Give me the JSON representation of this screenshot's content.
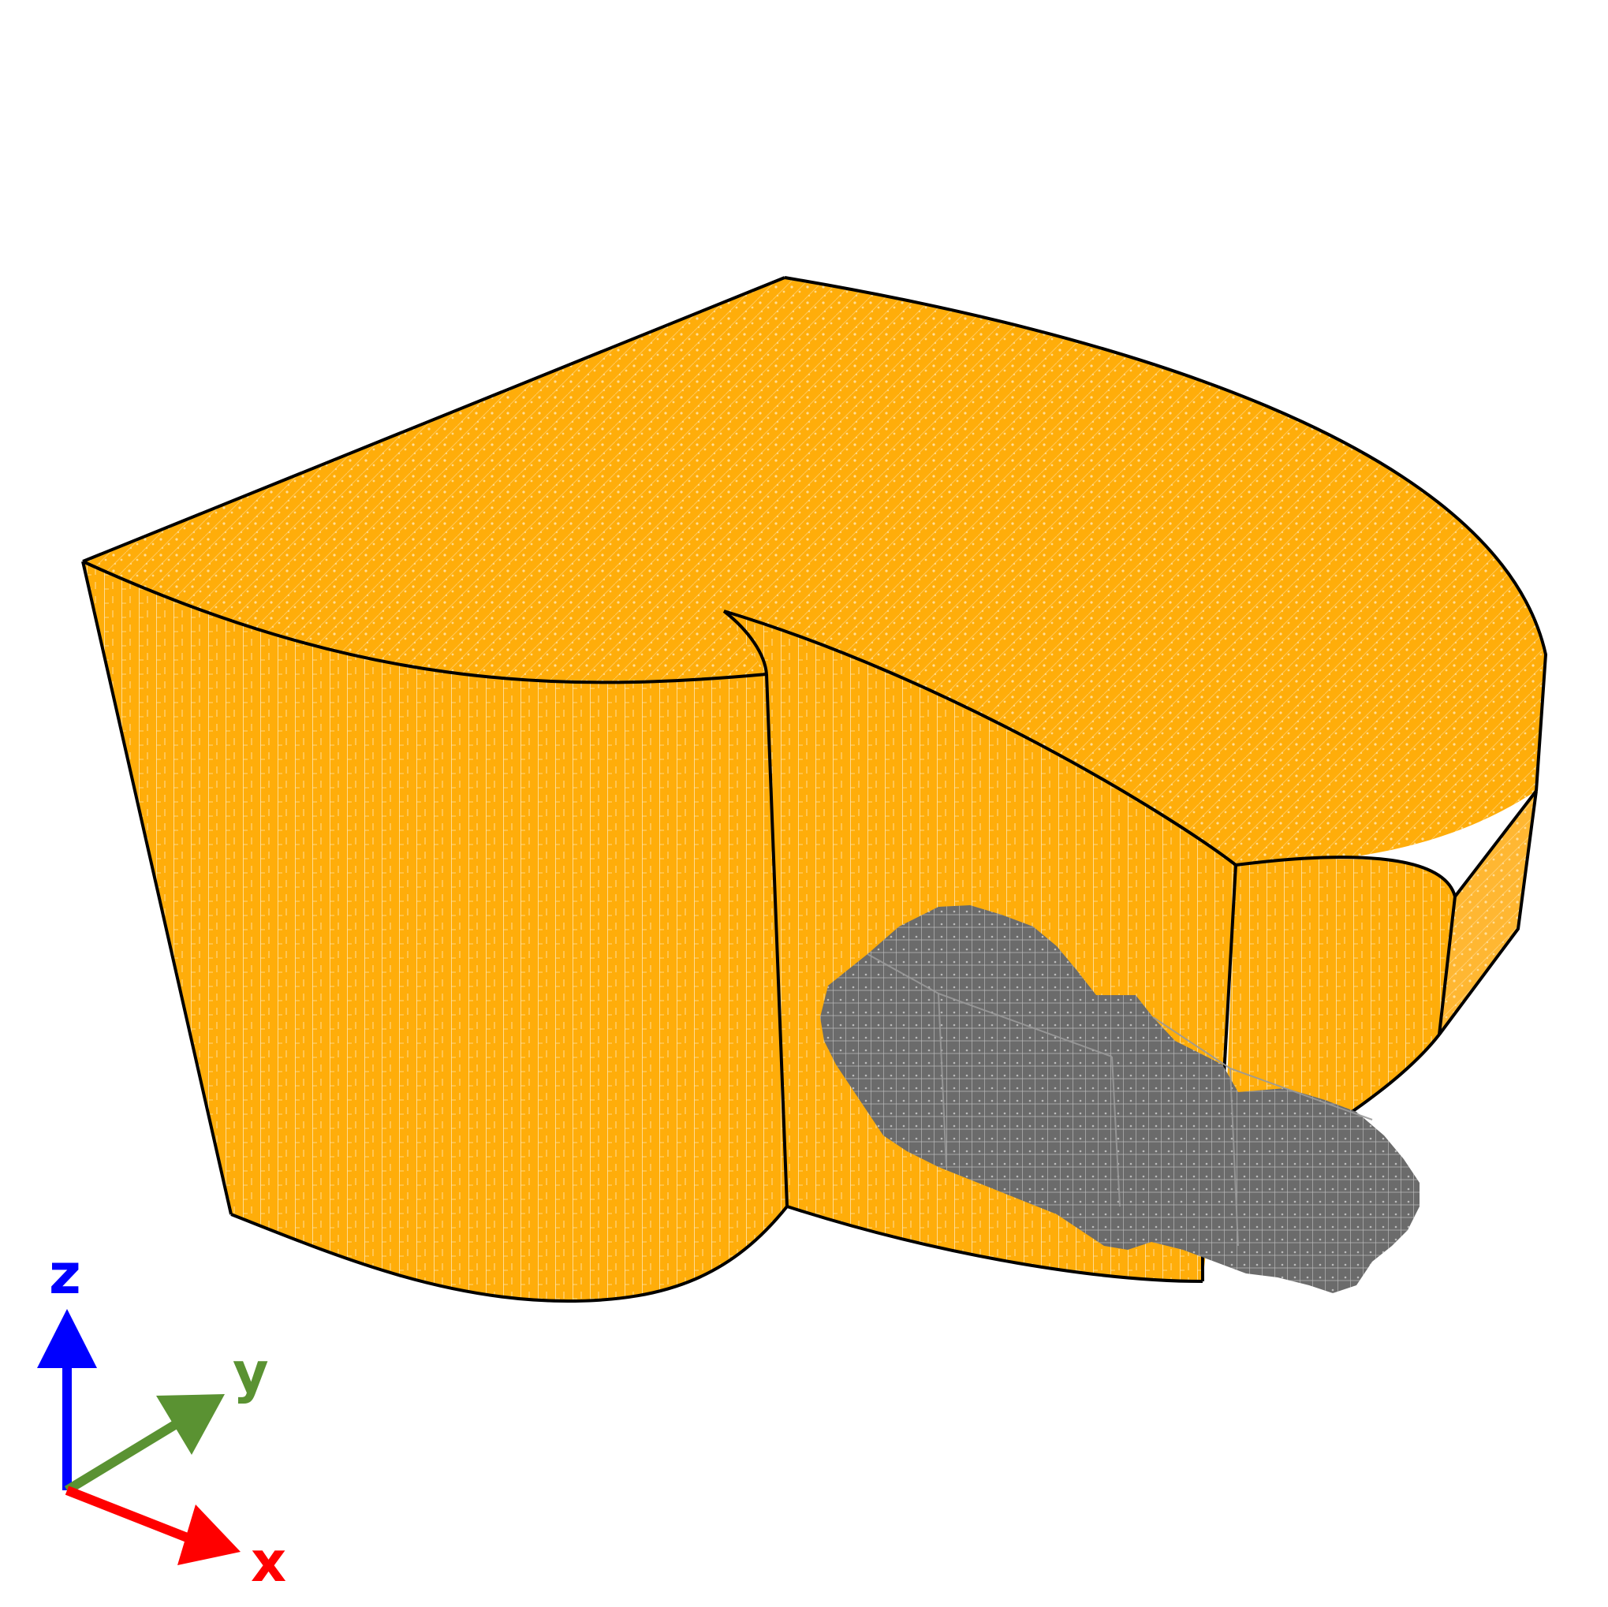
{
  "colors": {
    "block_fill": "#FFAD0A",
    "block_mesh": "#FFE3A8",
    "block_edge": "#000000",
    "insert_fill": "#6B6B6B",
    "insert_mesh": "#BDBDBD",
    "axis_z": "#0000FF",
    "axis_y": "#5A9232",
    "axis_x": "#FF0000",
    "background": "#FFFFFF"
  },
  "axes": {
    "z_label": "z",
    "y_label": "y",
    "x_label": "x"
  }
}
